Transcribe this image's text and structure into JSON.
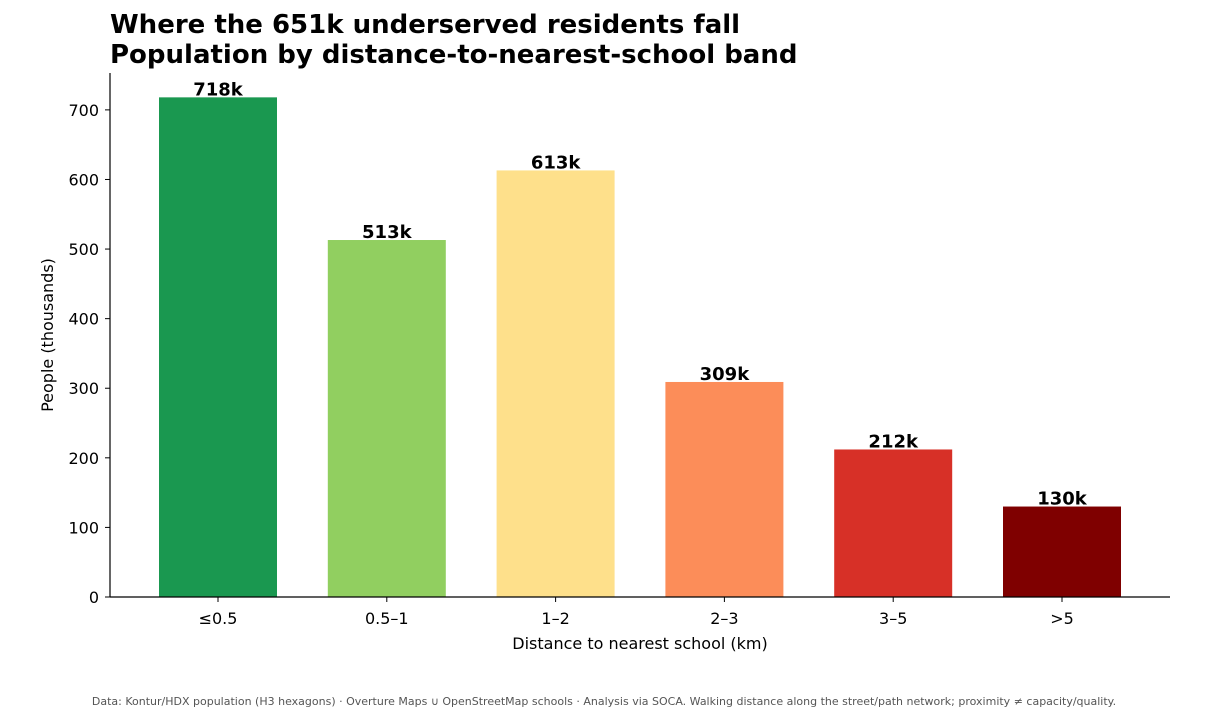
{
  "chart_data": {
    "type": "bar",
    "title_lines": [
      "Where the 651k underserved residents fall",
      "Population by distance-to-nearest-school band"
    ],
    "xlabel": "Distance to nearest school (km)",
    "ylabel": "People (thousands)",
    "categories": [
      "≤0.5",
      "0.5–1",
      "1–2",
      "2–3",
      "3–5",
      ">5"
    ],
    "values": [
      718,
      513,
      613,
      309,
      212,
      130
    ],
    "data_labels": [
      "718k",
      "513k",
      "613k",
      "309k",
      "212k",
      "130k"
    ],
    "colors": [
      "#1a9850",
      "#91cf60",
      "#fee08b",
      "#fc8d59",
      "#d73027",
      "#7f0000"
    ],
    "ylim": [
      0,
      753
    ],
    "yticks": [
      0,
      100,
      200,
      300,
      400,
      500,
      600,
      700
    ],
    "grid": false,
    "legend": "none"
  },
  "footnote": "Data: Kontur/HDX population (H3 hexagons) · Overture Maps ∪ OpenStreetMap schools · Analysis via SOCA. Walking distance along the street/path network; proximity ≠ capacity/quality."
}
